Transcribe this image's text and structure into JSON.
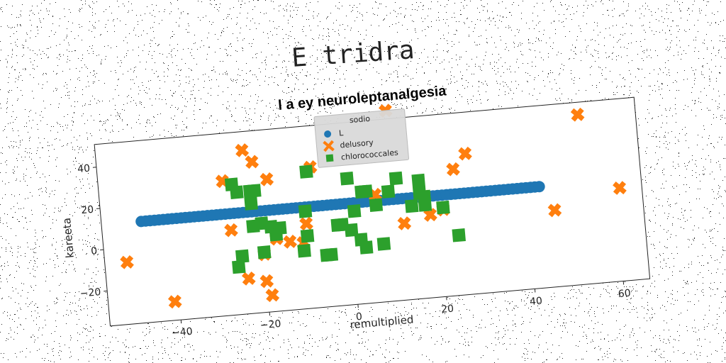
{
  "suptitle": "E tridra",
  "chart_data": {
    "type": "scatter",
    "title": "l a ey neuroleptanalgesia",
    "xlabel": "remultiplied",
    "ylabel": "kareeta",
    "xlim": [
      -56,
      66
    ],
    "ylim": [
      -37,
      51
    ],
    "xticks": [
      -40,
      -20,
      0,
      20,
      40,
      60
    ],
    "yticks": [
      -20,
      0,
      20,
      40
    ],
    "grid": false,
    "legend": {
      "title": "sodio",
      "placement": "top-center"
    },
    "rotation_degrees": -5,
    "series": [
      {
        "name": "L",
        "marker": "circle",
        "color": "#1f77b4",
        "points": [
          [
            -47,
            12
          ],
          [
            -46,
            12
          ],
          [
            -45,
            12
          ],
          [
            -44,
            12
          ],
          [
            -43,
            12
          ],
          [
            -42,
            12
          ],
          [
            -41,
            12
          ],
          [
            -40,
            12
          ],
          [
            -39,
            12
          ],
          [
            -38,
            12
          ],
          [
            -37,
            12
          ],
          [
            -36,
            12
          ],
          [
            -35,
            12
          ],
          [
            -34,
            12
          ],
          [
            -33,
            12
          ],
          [
            -32,
            12
          ],
          [
            -31,
            12
          ],
          [
            -30,
            12
          ],
          [
            -29,
            12
          ],
          [
            -28,
            12
          ],
          [
            -27,
            12
          ],
          [
            -26,
            12
          ],
          [
            -25,
            12
          ],
          [
            -24,
            12
          ],
          [
            -23,
            12
          ],
          [
            -22,
            12
          ],
          [
            -21,
            12
          ],
          [
            -20,
            12
          ],
          [
            -19,
            12
          ],
          [
            -18,
            12
          ],
          [
            -17,
            12
          ],
          [
            -16,
            12
          ],
          [
            -15,
            12
          ],
          [
            -14,
            12
          ],
          [
            -13,
            12
          ],
          [
            -12,
            12
          ],
          [
            -11,
            12
          ],
          [
            -10,
            12
          ],
          [
            -9,
            12
          ],
          [
            -8,
            12
          ],
          [
            -7,
            12
          ],
          [
            -6,
            12
          ],
          [
            -5,
            12
          ],
          [
            -4,
            12
          ],
          [
            -3,
            12
          ],
          [
            -2,
            12
          ],
          [
            -1,
            12
          ],
          [
            0,
            12
          ],
          [
            1,
            12
          ],
          [
            2,
            12
          ],
          [
            3,
            12
          ],
          [
            4,
            12
          ],
          [
            5,
            12
          ],
          [
            6,
            12
          ],
          [
            7,
            12
          ],
          [
            8,
            12
          ],
          [
            9,
            12
          ],
          [
            10,
            12
          ],
          [
            11,
            12
          ],
          [
            12,
            12
          ],
          [
            13,
            12
          ],
          [
            14,
            12
          ],
          [
            15,
            12
          ],
          [
            16,
            12
          ],
          [
            17,
            12
          ],
          [
            18,
            12
          ],
          [
            19,
            12
          ],
          [
            20,
            12
          ],
          [
            21,
            12
          ],
          [
            22,
            12
          ],
          [
            23,
            12
          ],
          [
            24,
            12
          ],
          [
            25,
            12
          ],
          [
            26,
            12
          ],
          [
            27,
            12
          ],
          [
            28,
            12
          ],
          [
            29,
            12
          ],
          [
            30,
            12
          ],
          [
            31,
            12
          ],
          [
            32,
            12
          ],
          [
            33,
            12
          ],
          [
            34,
            12
          ],
          [
            35,
            12
          ],
          [
            36,
            12
          ],
          [
            37,
            12
          ],
          [
            38,
            12
          ],
          [
            39,
            12
          ],
          [
            40,
            12
          ],
          [
            41,
            12
          ],
          [
            42,
            12
          ],
          [
            43,
            12
          ]
        ]
      },
      {
        "name": "delusory",
        "marker": "x",
        "color": "#ff7f0e",
        "points": [
          [
            -51,
            -7
          ],
          [
            -41,
            -28
          ],
          [
            -28,
            28
          ],
          [
            -27,
            4
          ],
          [
            -24,
            -20
          ],
          [
            -23,
            42
          ],
          [
            -21,
            36
          ],
          [
            -20,
            -22
          ],
          [
            -19,
            -29
          ],
          [
            -20,
            -9
          ],
          [
            -18,
            27
          ],
          [
            -17,
            -2
          ],
          [
            -14,
            -4
          ],
          [
            -11,
            -5
          ],
          [
            -10,
            4
          ],
          [
            -8,
            31
          ],
          [
            6,
            15
          ],
          [
            10,
            55
          ],
          [
            12,
            0
          ],
          [
            17,
            12
          ],
          [
            18,
            3
          ],
          [
            21,
            5
          ],
          [
            24,
            24
          ],
          [
            27,
            31
          ],
          [
            46,
            0
          ],
          [
            53,
            45
          ],
          [
            61,
            8
          ]
        ]
      },
      {
        "name": "chlorococcales",
        "marker": "square",
        "color": "#2ca02c",
        "points": [
          [
            -26,
            26
          ],
          [
            -25,
            22
          ],
          [
            -26,
            -14
          ],
          [
            -25,
            -9
          ],
          [
            -22,
            16
          ],
          [
            -22,
            22
          ],
          [
            -21,
            22
          ],
          [
            -22,
            5
          ],
          [
            -20,
            6
          ],
          [
            -20,
            -8
          ],
          [
            -18,
            4
          ],
          [
            -17,
            0
          ],
          [
            -16,
            3
          ],
          [
            -11,
            -9
          ],
          [
            -10,
            -2
          ],
          [
            -10,
            10
          ],
          [
            -9,
            29
          ],
          [
            -6,
            -12
          ],
          [
            -5,
            -12
          ],
          [
            -3,
            2
          ],
          [
            -2,
            2
          ],
          [
            0,
            -1
          ],
          [
            0,
            24
          ],
          [
            1,
            8
          ],
          [
            2,
            -6
          ],
          [
            3,
            -10
          ],
          [
            3,
            17
          ],
          [
            4,
            17
          ],
          [
            6,
            10
          ],
          [
            7,
            -9
          ],
          [
            9,
            16
          ],
          [
            11,
            22
          ],
          [
            14,
            8
          ],
          [
            16,
            20
          ],
          [
            16,
            14
          ],
          [
            17,
            12
          ],
          [
            17,
            8
          ],
          [
            21,
            6
          ],
          [
            24,
            -8
          ]
        ]
      }
    ]
  }
}
